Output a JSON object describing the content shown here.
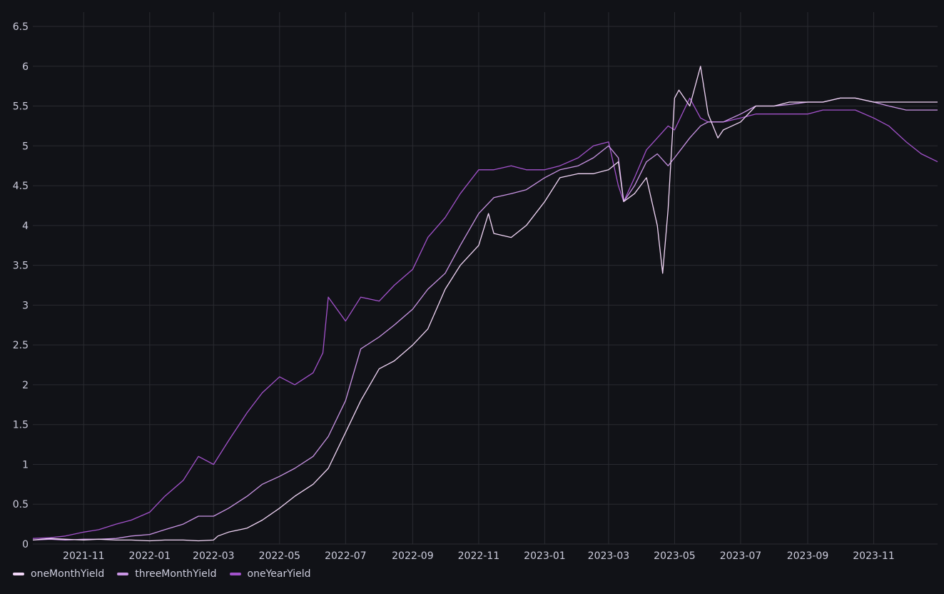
{
  "chart_data": {
    "type": "line",
    "title": "",
    "xlabel": "",
    "ylabel": "",
    "ylim": [
      0,
      6.5
    ],
    "xlim": [
      "2021-09-15",
      "2023-12-30"
    ],
    "grid": true,
    "legend_position": "bottom-left",
    "y_ticks": [
      "0",
      "0.5",
      "1",
      "1.5",
      "2",
      "2.5",
      "3",
      "3.5",
      "4",
      "4.5",
      "5",
      "5.5",
      "6",
      "6.5"
    ],
    "x_ticks": [
      "2021-11",
      "2022-01",
      "2022-03",
      "2022-05",
      "2022-07",
      "2022-09",
      "2022-11",
      "2023-01",
      "2023-03",
      "2023-05",
      "2023-07",
      "2023-09",
      "2023-11"
    ],
    "series": [
      {
        "name": "oneMonthYield",
        "color": "#f2d6f7",
        "x": [
          "2021-09-15",
          "2021-10-01",
          "2021-10-15",
          "2021-11-01",
          "2021-11-15",
          "2021-12-01",
          "2021-12-15",
          "2022-01-01",
          "2022-01-15",
          "2022-02-01",
          "2022-02-15",
          "2022-03-01",
          "2022-03-05",
          "2022-03-15",
          "2022-04-01",
          "2022-04-15",
          "2022-05-01",
          "2022-05-15",
          "2022-06-01",
          "2022-06-15",
          "2022-07-01",
          "2022-07-15",
          "2022-08-01",
          "2022-08-15",
          "2022-09-01",
          "2022-09-15",
          "2022-10-01",
          "2022-10-15",
          "2022-11-01",
          "2022-11-10",
          "2022-11-15",
          "2022-12-01",
          "2022-12-15",
          "2023-01-01",
          "2023-01-15",
          "2023-02-01",
          "2023-02-15",
          "2023-03-01",
          "2023-03-10",
          "2023-03-15",
          "2023-03-25",
          "2023-04-05",
          "2023-04-15",
          "2023-04-20",
          "2023-04-25",
          "2023-05-01",
          "2023-05-05",
          "2023-05-15",
          "2023-05-25",
          "2023-06-01",
          "2023-06-10",
          "2023-06-15",
          "2023-07-01",
          "2023-07-15",
          "2023-08-01",
          "2023-08-15",
          "2023-09-01",
          "2023-09-15",
          "2023-10-01",
          "2023-10-15",
          "2023-11-01",
          "2023-11-15",
          "2023-12-01",
          "2023-12-15",
          "2023-12-30"
        ],
        "values": [
          0.05,
          0.07,
          0.06,
          0.05,
          0.06,
          0.05,
          0.05,
          0.04,
          0.05,
          0.05,
          0.04,
          0.05,
          0.1,
          0.15,
          0.2,
          0.3,
          0.45,
          0.6,
          0.75,
          0.95,
          1.4,
          1.8,
          2.2,
          2.3,
          2.5,
          2.7,
          3.2,
          3.5,
          3.75,
          4.15,
          3.9,
          3.85,
          4.0,
          4.3,
          4.6,
          4.65,
          4.65,
          4.7,
          4.8,
          4.3,
          4.4,
          4.6,
          4.0,
          3.4,
          4.2,
          5.6,
          5.7,
          5.5,
          6.0,
          5.4,
          5.1,
          5.2,
          5.3,
          5.5,
          5.5,
          5.55,
          5.55,
          5.55,
          5.6,
          5.6,
          5.55,
          5.55,
          5.55,
          5.55,
          5.55
        ]
      },
      {
        "name": "threeMonthYield",
        "color": "#ca95e5",
        "x": [
          "2021-09-15",
          "2021-10-01",
          "2021-10-15",
          "2021-11-01",
          "2021-11-15",
          "2021-12-01",
          "2021-12-15",
          "2022-01-01",
          "2022-01-15",
          "2022-02-01",
          "2022-02-15",
          "2022-03-01",
          "2022-03-15",
          "2022-04-01",
          "2022-04-15",
          "2022-05-01",
          "2022-05-15",
          "2022-06-01",
          "2022-06-15",
          "2022-07-01",
          "2022-07-15",
          "2022-08-01",
          "2022-08-15",
          "2022-09-01",
          "2022-09-15",
          "2022-10-01",
          "2022-10-15",
          "2022-11-01",
          "2022-11-15",
          "2022-12-01",
          "2022-12-15",
          "2023-01-01",
          "2023-01-15",
          "2023-02-01",
          "2023-02-15",
          "2023-03-01",
          "2023-03-10",
          "2023-03-15",
          "2023-03-25",
          "2023-04-05",
          "2023-04-15",
          "2023-04-25",
          "2023-05-01",
          "2023-05-15",
          "2023-05-25",
          "2023-06-01",
          "2023-06-15",
          "2023-07-01",
          "2023-07-15",
          "2023-08-01",
          "2023-08-15",
          "2023-09-01",
          "2023-09-15",
          "2023-10-01",
          "2023-10-15",
          "2023-11-01",
          "2023-11-15",
          "2023-12-01",
          "2023-12-15",
          "2023-12-30"
        ],
        "values": [
          0.05,
          0.06,
          0.05,
          0.06,
          0.06,
          0.07,
          0.1,
          0.12,
          0.18,
          0.25,
          0.35,
          0.35,
          0.45,
          0.6,
          0.75,
          0.85,
          0.95,
          1.1,
          1.35,
          1.8,
          2.45,
          2.6,
          2.75,
          2.95,
          3.2,
          3.4,
          3.75,
          4.15,
          4.35,
          4.4,
          4.45,
          4.6,
          4.7,
          4.75,
          4.85,
          5.0,
          4.85,
          4.3,
          4.5,
          4.8,
          4.9,
          4.75,
          4.85,
          5.1,
          5.25,
          5.3,
          5.3,
          5.4,
          5.5,
          5.5,
          5.52,
          5.55,
          5.55,
          5.6,
          5.6,
          5.55,
          5.5,
          5.45,
          5.45,
          5.45
        ]
      },
      {
        "name": "oneYearYield",
        "color": "#a352cc",
        "x": [
          "2021-09-15",
          "2021-10-01",
          "2021-10-15",
          "2021-11-01",
          "2021-11-15",
          "2021-12-01",
          "2021-12-15",
          "2022-01-01",
          "2022-01-15",
          "2022-02-01",
          "2022-02-15",
          "2022-03-01",
          "2022-03-15",
          "2022-04-01",
          "2022-04-15",
          "2022-05-01",
          "2022-05-15",
          "2022-06-01",
          "2022-06-10",
          "2022-06-15",
          "2022-07-01",
          "2022-07-15",
          "2022-08-01",
          "2022-08-15",
          "2022-09-01",
          "2022-09-15",
          "2022-10-01",
          "2022-10-15",
          "2022-11-01",
          "2022-11-15",
          "2022-12-01",
          "2022-12-15",
          "2023-01-01",
          "2023-01-15",
          "2023-02-01",
          "2023-02-15",
          "2023-03-01",
          "2023-03-10",
          "2023-03-15",
          "2023-03-25",
          "2023-04-05",
          "2023-04-15",
          "2023-04-25",
          "2023-05-01",
          "2023-05-15",
          "2023-05-25",
          "2023-06-01",
          "2023-06-15",
          "2023-07-01",
          "2023-07-15",
          "2023-08-01",
          "2023-08-15",
          "2023-09-01",
          "2023-09-15",
          "2023-10-01",
          "2023-10-15",
          "2023-11-01",
          "2023-11-15",
          "2023-12-01",
          "2023-12-15",
          "2023-12-30"
        ],
        "values": [
          0.07,
          0.08,
          0.1,
          0.15,
          0.18,
          0.25,
          0.3,
          0.4,
          0.6,
          0.8,
          1.1,
          1.0,
          1.3,
          1.65,
          1.9,
          2.1,
          2.0,
          2.15,
          2.4,
          3.1,
          2.8,
          3.1,
          3.05,
          3.25,
          3.45,
          3.85,
          4.1,
          4.4,
          4.7,
          4.7,
          4.75,
          4.7,
          4.7,
          4.75,
          4.85,
          5.0,
          5.05,
          4.5,
          4.3,
          4.6,
          4.95,
          5.1,
          5.25,
          5.2,
          5.6,
          5.35,
          5.3,
          5.3,
          5.35,
          5.4,
          5.4,
          5.4,
          5.4,
          5.45,
          5.45,
          5.45,
          5.35,
          5.25,
          5.05,
          4.9,
          4.8
        ]
      }
    ]
  }
}
